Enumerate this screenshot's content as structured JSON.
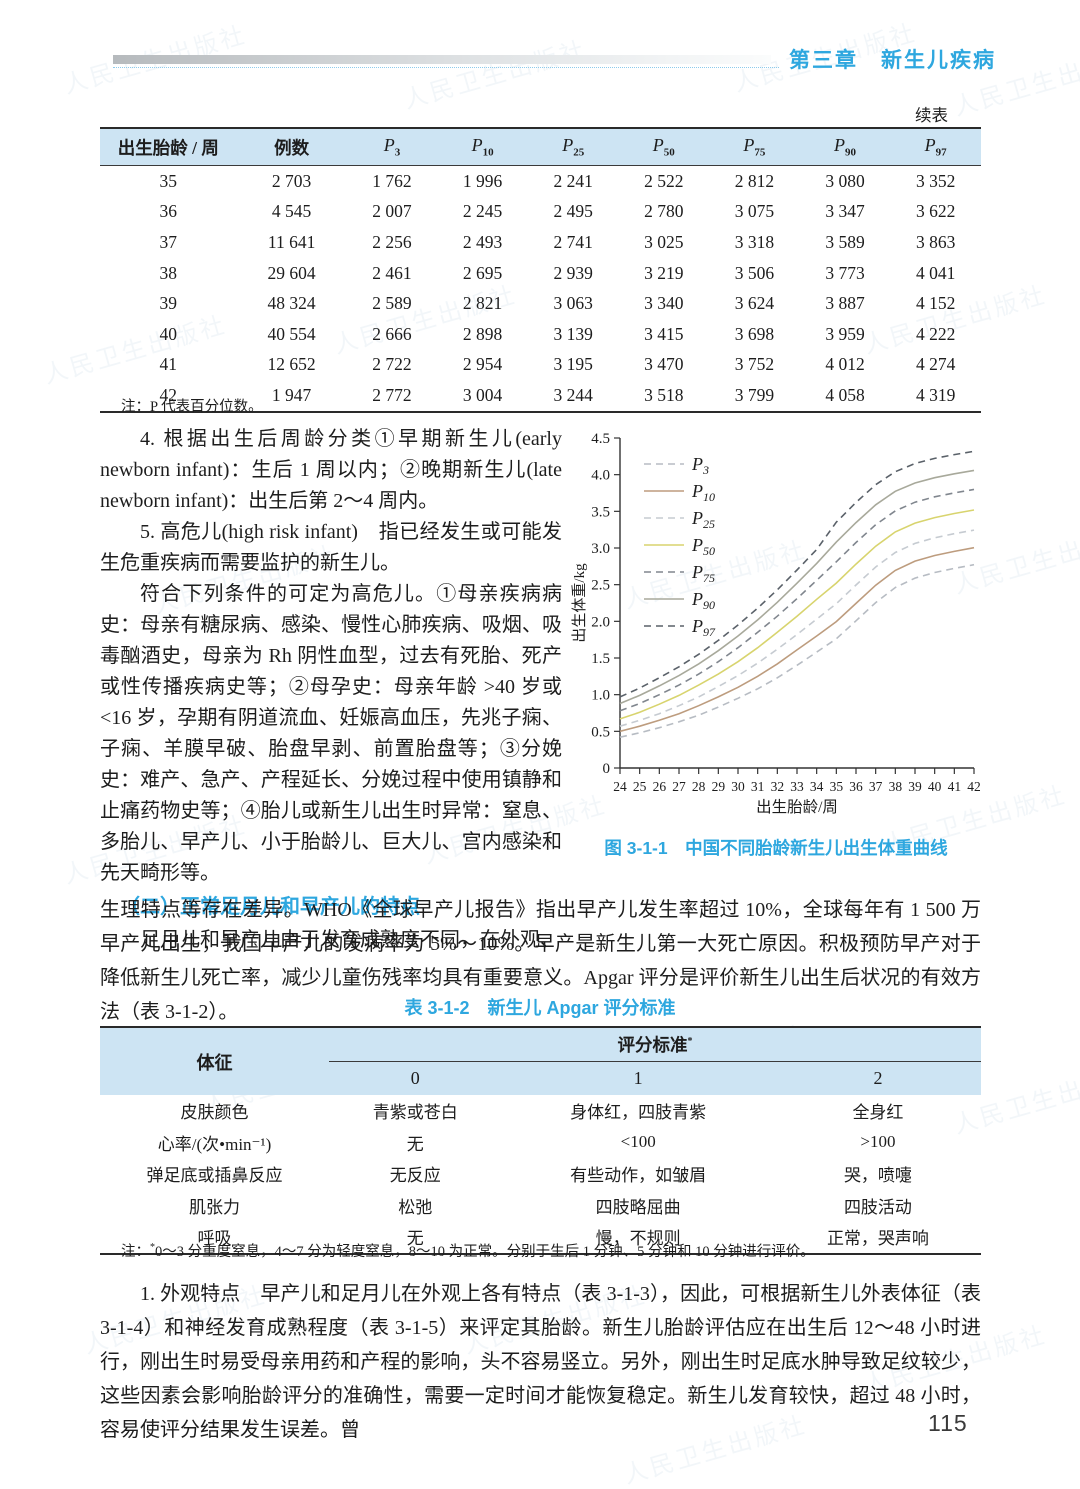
{
  "watermark_text": "人民卫生出版社",
  "header": {
    "chapter_title": "第三章　新生儿疾病"
  },
  "continued_label": "续表",
  "table1": {
    "col_week": "出生胎龄 / 周",
    "col_cases": "例数",
    "p_base": "P",
    "p_subs": [
      "3",
      "10",
      "25",
      "50",
      "75",
      "90",
      "97"
    ],
    "rows": [
      [
        "35",
        "2 703",
        "1 762",
        "1 996",
        "2 241",
        "2 522",
        "2 812",
        "3 080",
        "3 352"
      ],
      [
        "36",
        "4 545",
        "2 007",
        "2 245",
        "2 495",
        "2 780",
        "3 075",
        "3 347",
        "3 622"
      ],
      [
        "37",
        "11 641",
        "2 256",
        "2 493",
        "2 741",
        "3 025",
        "3 318",
        "3 589",
        "3 863"
      ],
      [
        "38",
        "29 604",
        "2 461",
        "2 695",
        "2 939",
        "3 219",
        "3 506",
        "3 773",
        "4 041"
      ],
      [
        "39",
        "48 324",
        "2 589",
        "2 821",
        "3 063",
        "3 340",
        "3 624",
        "3 887",
        "4 152"
      ],
      [
        "40",
        "40 554",
        "2 666",
        "2 898",
        "3 139",
        "3 415",
        "3 698",
        "3 959",
        "4 222"
      ],
      [
        "41",
        "12 652",
        "2 722",
        "2 954",
        "3 195",
        "3 470",
        "3 752",
        "4 012",
        "4 274"
      ],
      [
        "42",
        "1 947",
        "2 772",
        "3 004",
        "3 244",
        "3 518",
        "3 799",
        "4 058",
        "4 319"
      ]
    ],
    "note": "注：P 代表百分位数。"
  },
  "body": {
    "p4": "4. 根据出生后周龄分类①早期新生儿(early newborn infant)：生后 1 周以内；②晚期新生儿(late newborn infant)：出生后第 2～4 周内。",
    "p5": "5. 高危儿(high risk infant)　指已经发生或可能发生危重疾病而需要监护的新生儿。",
    "p6": "符合下列条件的可定为高危儿。①母亲疾病病史：母亲有糖尿病、感染、慢性心肺疾病、吸烟、吸毒酗酒史，母亲为 Rh 阴性血型，过去有死胎、死产或性传播疾病史等；②母孕史：母亲年龄 >40 岁或 <16 岁，孕期有阴道流血、妊娠高血压，先兆子痫、子痫、羊膜早破、胎盘早剥、前置胎盘等；③分娩史：难产、急产、产程延长、分娩过程中使用镇静和止痛药物史等；④胎儿或新生儿出生时异常：窒息、多胎儿、早产儿、小于胎龄儿、巨大儿、宫内感染和先天畸形等。",
    "section_heading": "（二）正常足月儿和早产儿的特点",
    "p7": "足月儿和早产儿由于发育成熟度不同，在外观、",
    "p8": "生理特点等存在差异。WHO《全球早产儿报告》指出早产儿发生率超过 10%，全球每年有 1 500 万早产儿出生，我国早产儿的发病率为 5%～10%。早产是新生儿第一大死亡原因。积极预防早产对于降低新生儿死亡率，减少儿童伤残率均具有重要意义。Apgar 评分是评价新生儿出生后状况的有效方法（表 3-1-2）。",
    "p9": "1. 外观特点　早产儿和足月儿在外观上各有特点（表 3-1-3），因此，可根据新生儿外表体征（表 3-1-4）和神经发育成熟程度（表 3-1-5）来评定其胎龄。新生儿胎龄评估应在出生后 12～48 小时进行，刚出生时易受母亲用药和产程的影响，头不容易竖立。另外，刚出生时足底水肿导致足纹较少，这些因素会影响胎龄评分的准确性，需要一定时间才能恢复稳定。新生儿发育较快，超过 48 小时，容易使评分结果发生误差。曾"
  },
  "figure": {
    "caption": "图 3-1-1　中国不同胎龄新生儿出生体重曲线"
  },
  "chart_data": {
    "type": "line",
    "title": "中国不同胎龄新生儿出生体重曲线",
    "xlabel": "出生胎龄/周",
    "ylabel": "出生体重/kg",
    "x": [
      24,
      25,
      26,
      27,
      28,
      29,
      30,
      31,
      32,
      33,
      34,
      35,
      36,
      37,
      38,
      39,
      40,
      41,
      42
    ],
    "xlim": [
      24,
      42
    ],
    "ylim": [
      0,
      4.5
    ],
    "ytick_step": 0.5,
    "grid": false,
    "legend_position": "upper-left",
    "series": [
      {
        "name": "P3",
        "sub": "3",
        "dashed": true,
        "color": "#b7bcc3",
        "values": [
          0.42,
          0.48,
          0.55,
          0.63,
          0.72,
          0.83,
          0.95,
          1.08,
          1.23,
          1.4,
          1.58,
          1.762,
          2.007,
          2.256,
          2.461,
          2.589,
          2.666,
          2.722,
          2.772
        ]
      },
      {
        "name": "P10",
        "sub": "10",
        "dashed": false,
        "color": "#bd9c7e",
        "values": [
          0.5,
          0.57,
          0.65,
          0.74,
          0.85,
          0.97,
          1.1,
          1.25,
          1.42,
          1.61,
          1.8,
          1.996,
          2.245,
          2.493,
          2.695,
          2.821,
          2.898,
          2.954,
          3.004
        ]
      },
      {
        "name": "P25",
        "sub": "25",
        "dashed": true,
        "color": "#c6cbd1",
        "values": [
          0.57,
          0.65,
          0.74,
          0.85,
          0.97,
          1.11,
          1.26,
          1.43,
          1.62,
          1.82,
          2.03,
          2.241,
          2.495,
          2.741,
          2.939,
          3.063,
          3.139,
          3.195,
          3.244
        ]
      },
      {
        "name": "P50",
        "sub": "50",
        "dashed": false,
        "color": "#d8d46e",
        "values": [
          0.67,
          0.76,
          0.87,
          0.99,
          1.13,
          1.28,
          1.45,
          1.64,
          1.85,
          2.07,
          2.3,
          2.522,
          2.78,
          3.025,
          3.219,
          3.34,
          3.415,
          3.47,
          3.518
        ]
      },
      {
        "name": "P75",
        "sub": "75",
        "dashed": true,
        "color": "#80868e",
        "values": [
          0.78,
          0.88,
          1.0,
          1.13,
          1.28,
          1.45,
          1.64,
          1.85,
          2.07,
          2.31,
          2.56,
          2.812,
          3.075,
          3.318,
          3.506,
          3.624,
          3.698,
          3.752,
          3.799
        ]
      },
      {
        "name": "P90",
        "sub": "90",
        "dashed": false,
        "color": "#a8a99b",
        "values": [
          0.88,
          0.99,
          1.12,
          1.26,
          1.42,
          1.6,
          1.8,
          2.02,
          2.26,
          2.52,
          2.79,
          3.08,
          3.347,
          3.589,
          3.773,
          3.887,
          3.959,
          4.012,
          4.058
        ]
      },
      {
        "name": "P97",
        "sub": "97",
        "dashed": true,
        "color": "#5a6169",
        "values": [
          0.97,
          1.09,
          1.23,
          1.38,
          1.55,
          1.74,
          1.95,
          2.18,
          2.43,
          2.7,
          2.98,
          3.352,
          3.622,
          3.863,
          4.041,
          4.152,
          4.222,
          4.274,
          4.319
        ]
      }
    ]
  },
  "table2": {
    "title": "表 3-1-2　新生儿 Apgar 评分标准",
    "col_sign": "体征",
    "criteria_label": "评分标准",
    "criteria_mark": "*",
    "score_headers": [
      "0",
      "1",
      "2"
    ],
    "rows": [
      {
        "label": "皮肤颜色",
        "scores": [
          "青紫或苍白",
          "身体红，四肢青紫",
          "全身红"
        ]
      },
      {
        "label": "心率/(次•min⁻¹)",
        "scores": [
          "无",
          "<100",
          ">100"
        ]
      },
      {
        "label": "弹足底或插鼻反应",
        "scores": [
          "无反应",
          "有些动作，如皱眉",
          "哭，喷嚏"
        ]
      },
      {
        "label": "肌张力",
        "scores": [
          "松弛",
          "四肢略屈曲",
          "四肢活动"
        ]
      },
      {
        "label": "呼吸",
        "scores": [
          "无",
          "慢，不规则",
          "正常，哭声响"
        ]
      }
    ],
    "note_prefix": "注：",
    "note_mark": "*",
    "note_text": "0～3 分重度窒息，4～7 分为轻度窒息，8～10 为正常。分别于生后 1 分钟、5 分钟和 10 分钟进行评价。"
  },
  "page_number": "115"
}
